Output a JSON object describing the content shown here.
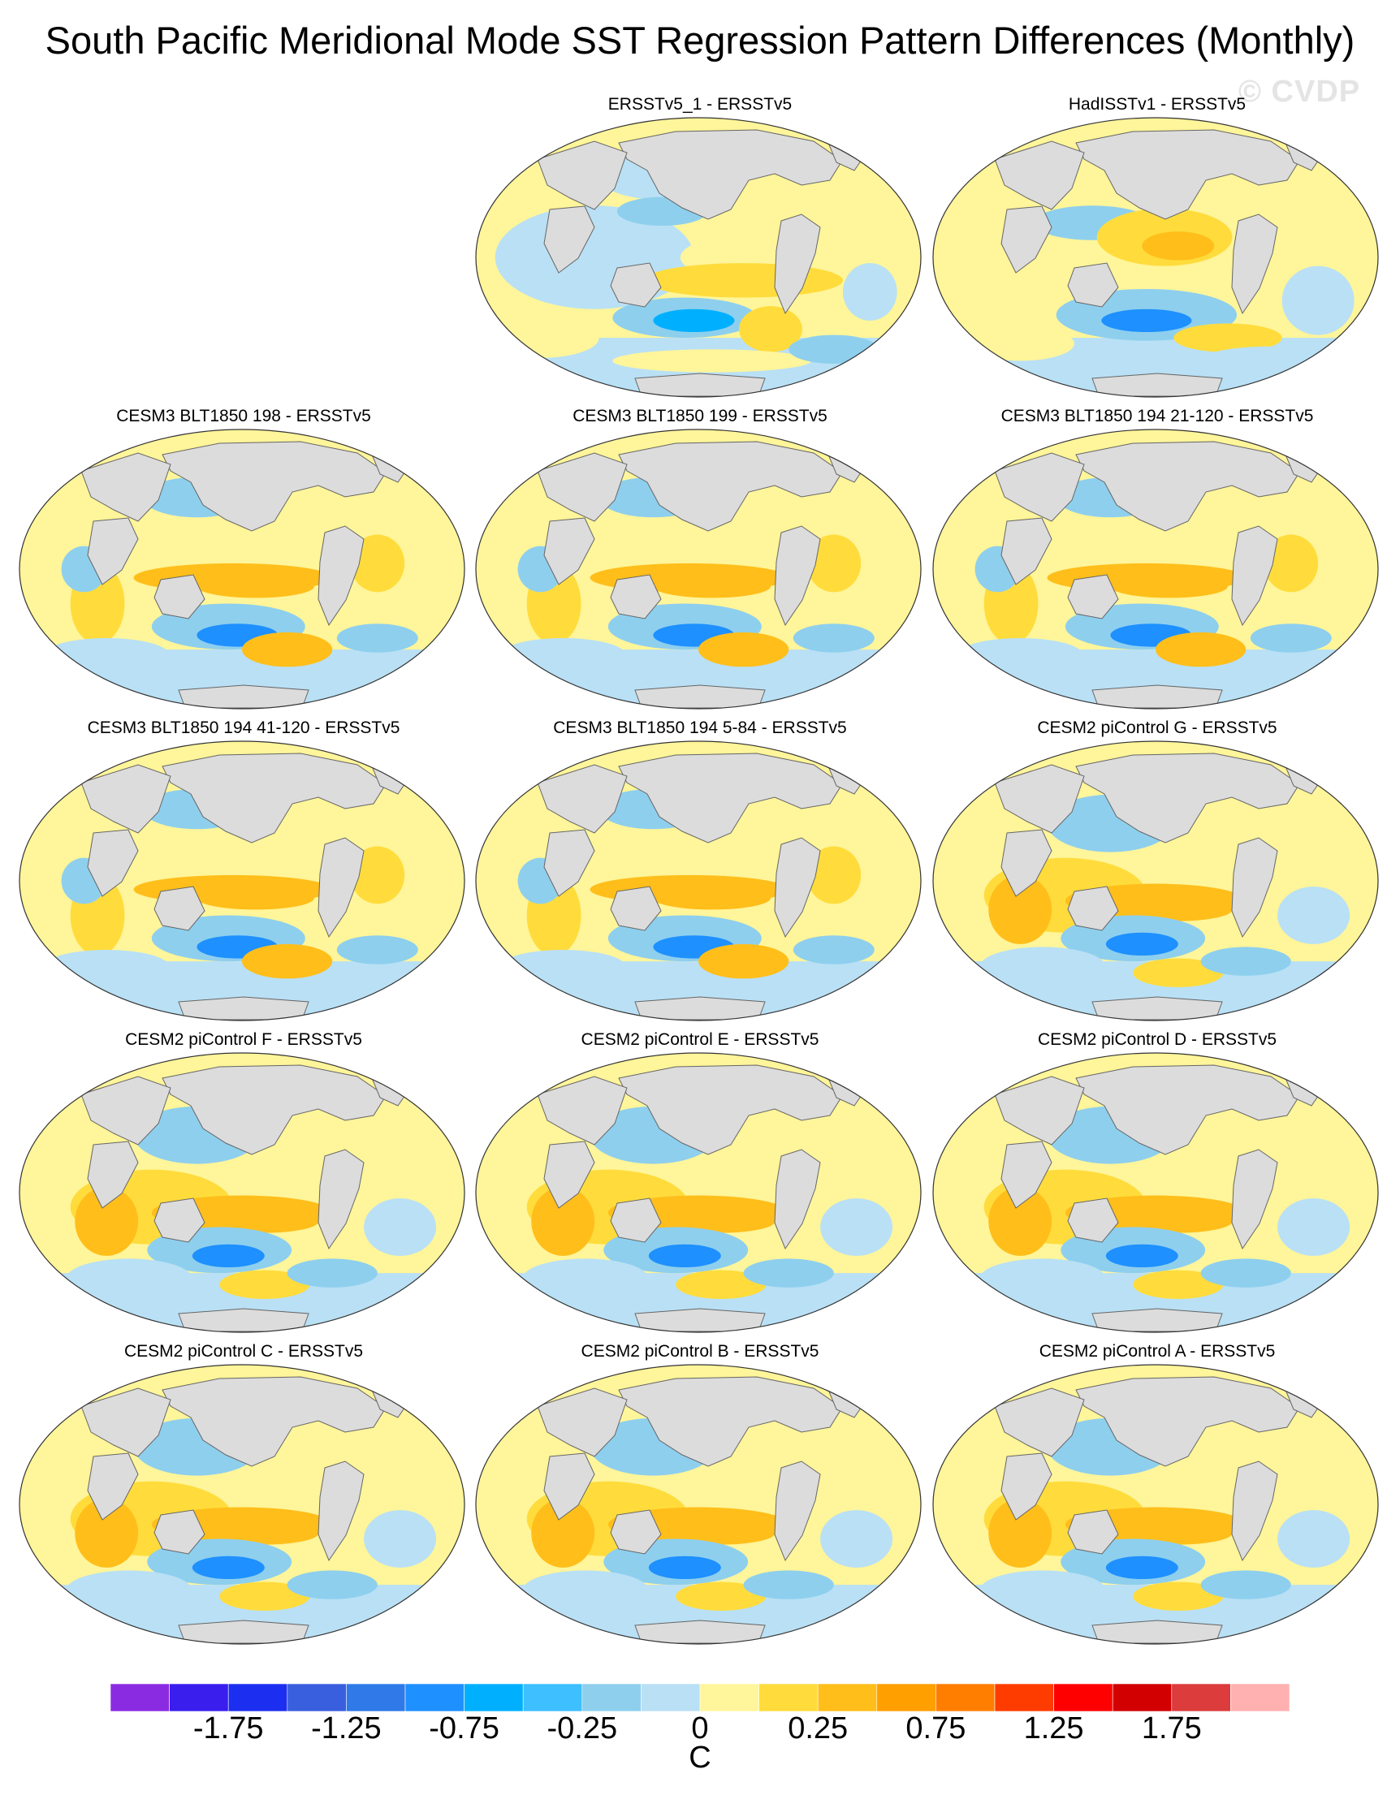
{
  "title": "South Pacific Meridional Mode SST Regression Pattern Differences (Monthly)",
  "watermark": "© CVDP",
  "panels": [
    {
      "title": "ERSSTv5_1 - ERSSTv5",
      "pattern": 0
    },
    {
      "title": "HadISSTv1 - ERSSTv5",
      "pattern": 1
    },
    {
      "title": "CESM3 BLT1850 198 - ERSSTv5",
      "pattern": 2
    },
    {
      "title": "CESM3 BLT1850 199 - ERSSTv5",
      "pattern": 2
    },
    {
      "title": "CESM3 BLT1850 194 21-120 - ERSSTv5",
      "pattern": 2
    },
    {
      "title": "CESM3 BLT1850 194 41-120 - ERSSTv5",
      "pattern": 2
    },
    {
      "title": "CESM3 BLT1850 194 5-84 - ERSSTv5",
      "pattern": 2
    },
    {
      "title": "CESM2 piControl G - ERSSTv5",
      "pattern": 3
    },
    {
      "title": "CESM2 piControl F - ERSSTv5",
      "pattern": 3
    },
    {
      "title": "CESM2 piControl E - ERSSTv5",
      "pattern": 3
    },
    {
      "title": "CESM2 piControl D - ERSSTv5",
      "pattern": 3
    },
    {
      "title": "CESM2 piControl C - ERSSTv5",
      "pattern": 3
    },
    {
      "title": "CESM2 piControl B - ERSSTv5",
      "pattern": 3
    },
    {
      "title": "CESM2 piControl A - ERSSTv5",
      "pattern": 3
    }
  ],
  "colorbar": {
    "colors": [
      "#8a2be2",
      "#3a1eee",
      "#1c2ff0",
      "#3a5fde",
      "#2f7ae8",
      "#1e90ff",
      "#00b0ff",
      "#3ebfff",
      "#8ecfee",
      "#b9e0f5",
      "#fff59a",
      "#ffdc3c",
      "#ffbe1a",
      "#ff9f00",
      "#ff7e00",
      "#ff3c00",
      "#ff0000",
      "#d20000",
      "#dc3c3c",
      "#ffb0b0"
    ],
    "tick_labels": [
      "-1.75",
      "-1.25",
      "-0.75",
      "-0.25",
      "0",
      "0.25",
      "0.75",
      "1.25",
      "1.75"
    ],
    "unit": "C"
  }
}
